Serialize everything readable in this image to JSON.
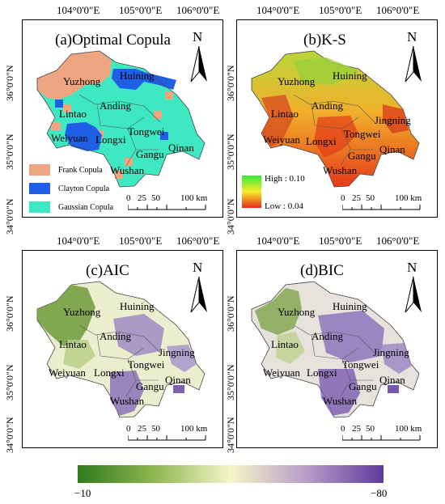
{
  "lon_labels": [
    "104°0'0\"E",
    "105°0'0\"E",
    "106°0'0\"E"
  ],
  "lat_labels": [
    "36°0'0\"N",
    "35°0'0\"N",
    "34°0'0\"N"
  ],
  "north_label": "N",
  "scale": {
    "ticks": [
      "0",
      "25",
      "50",
      "100 km"
    ]
  },
  "cities": [
    "Yuzhong",
    "Huining",
    "Anding",
    "Lintao",
    "Jingning",
    "Tongwei",
    "Weiyuan",
    "Longxi",
    "Qinan",
    "Gangu",
    "Wushan"
  ],
  "panels": [
    {
      "title": "(a)Optimal Copula",
      "legend": [
        {
          "label": "Frank Copula",
          "color": "#f0a582"
        },
        {
          "label": "Clayton Copula",
          "color": "#1f5fe6"
        },
        {
          "label": "Gaussian Copula",
          "color": "#3ee8c3"
        }
      ]
    },
    {
      "title": "(b)K-S",
      "legend_high": "High : 0.10",
      "legend_low": "Low : 0.04"
    },
    {
      "title": "(c)AIC"
    },
    {
      "title": "(d)BIC"
    }
  ],
  "colorbar": {
    "min_label": "−10",
    "max_label": "−80"
  },
  "colors": {
    "green_high": "#2f7a1e",
    "neutral": "#f6f5c8",
    "purple_low": "#5e3a9e"
  }
}
